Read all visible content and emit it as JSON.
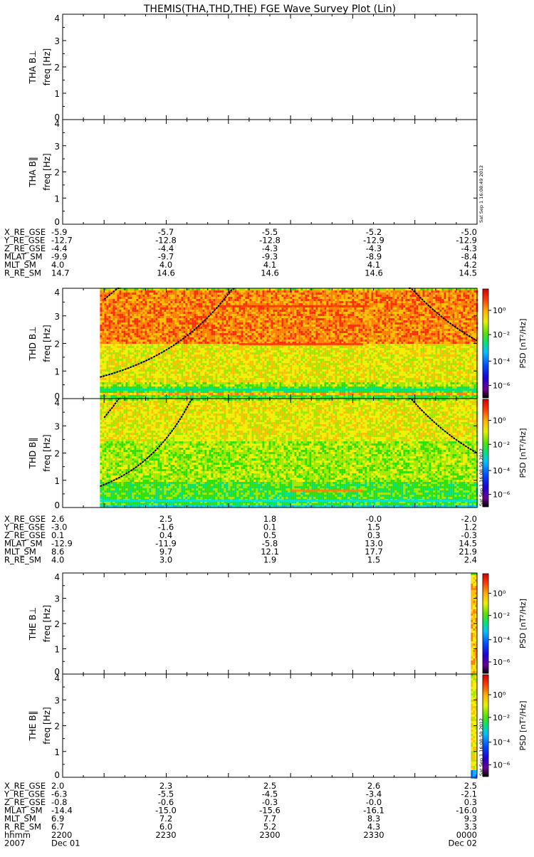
{
  "title": "THEMIS(THA,THD,THE) FGE Wave Survey Plot (Lin)",
  "stamps": {
    "tha": "Sat Sep  1 16:08:49 2012",
    "thd": "Sat Sep  1 16:08:50 2012",
    "the": "Sat Sep  1 16:08:50 2012"
  },
  "colorbar": {
    "label": "PSD [nT²/Hz]",
    "tick_labels": [
      "10⁰",
      "10⁻²",
      "10⁻⁴",
      "10⁻⁶"
    ],
    "colors": [
      "#000000",
      "#5a0070",
      "#7a00a0",
      "#3000d0",
      "#0000ff",
      "#0060ff",
      "#00b0ff",
      "#00e0e0",
      "#00e080",
      "#30e000",
      "#a0e800",
      "#f0f000",
      "#ffc000",
      "#ff8000",
      "#ff3000",
      "#e00000"
    ]
  },
  "chart_data": [
    {
      "type": "heatmap",
      "id": "tha-bperp",
      "ylabel": "THA B⊥",
      "ylabel2": "freq [Hz]",
      "ylim": [
        0,
        4
      ],
      "y_ticks": [
        "0",
        "1",
        "2",
        "3",
        "4"
      ],
      "has_data": false
    },
    {
      "type": "heatmap",
      "id": "tha-bpar",
      "ylabel": "THA B‖",
      "ylabel2": "freq [Hz]",
      "ylim": [
        0,
        4
      ],
      "y_ticks": [
        "0",
        "1",
        "2",
        "3",
        "4"
      ],
      "has_data": false
    },
    {
      "type": "heatmap",
      "id": "thd-bperp",
      "ylabel": "THD B⊥",
      "ylabel2": "freq [Hz]",
      "ylim": [
        0,
        4
      ],
      "y_ticks": [
        "0",
        "1",
        "2",
        "3",
        "4"
      ],
      "has_data": true,
      "data_start_min": 2218,
      "data_end_min": 2400,
      "bands": [
        {
          "f": [
            0.0,
            0.18
          ],
          "level": 9
        },
        {
          "f": [
            0.18,
            0.28
          ],
          "level": 12
        },
        {
          "f": [
            0.28,
            0.45
          ],
          "level": 9
        },
        {
          "f": [
            0.45,
            0.6
          ],
          "level": 10
        },
        {
          "f": [
            0.6,
            2.0
          ],
          "level": 11
        },
        {
          "f": [
            2.0,
            4.0
          ],
          "level": 13
        }
      ],
      "lines": [
        {
          "f": 1.97,
          "t_start": 2285,
          "t_end": 2345,
          "level": 14
        },
        {
          "f": 3.35,
          "t_start": 2275,
          "t_end": 2348,
          "level": 14
        },
        {
          "f": 0.32,
          "t_start": 2218,
          "t_end": 2400,
          "level": 8
        }
      ],
      "curves": [
        {
          "t_start": 2218,
          "t_end": 2283,
          "f_start": 0.78,
          "f_end": 4.1
        },
        {
          "t_start": 2220,
          "t_end": 2228,
          "f_start": 3.6,
          "f_end": 4.1
        },
        {
          "t_start": 2367,
          "t_end": 2400,
          "f_start": 4.1,
          "f_end": 2.1
        }
      ]
    },
    {
      "type": "heatmap",
      "id": "thd-bpar",
      "ylabel": "THD B‖",
      "ylabel2": "freq [Hz]",
      "ylim": [
        0,
        4
      ],
      "y_ticks": [
        "0",
        "1",
        "2",
        "3",
        "4"
      ],
      "has_data": true,
      "data_start_min": 2218,
      "data_end_min": 2400,
      "bands": [
        {
          "f": [
            0.0,
            0.15
          ],
          "level": 7
        },
        {
          "f": [
            0.15,
            0.3
          ],
          "level": 9
        },
        {
          "f": [
            0.3,
            1.0
          ],
          "level": 9
        },
        {
          "f": [
            1.0,
            2.5
          ],
          "level": 10
        },
        {
          "f": [
            2.5,
            4.0
          ],
          "level": 11
        }
      ],
      "lines": [
        {
          "f": 0.62,
          "t_start": 2310,
          "t_end": 2345,
          "level": 13
        },
        {
          "f": 0.25,
          "t_start": 2218,
          "t_end": 2400,
          "level": 7
        }
      ],
      "curves": [
        {
          "t_start": 2218,
          "t_end": 2263,
          "f_start": 0.78,
          "f_end": 4.1
        },
        {
          "t_start": 2220,
          "t_end": 2228,
          "f_start": 3.3,
          "f_end": 4.1
        },
        {
          "t_start": 2367,
          "t_end": 2400,
          "f_start": 4.1,
          "f_end": 2.0
        }
      ]
    },
    {
      "type": "heatmap",
      "id": "the-bperp",
      "ylabel": "THE B⊥",
      "ylabel2": "freq [Hz]",
      "ylim": [
        0,
        4
      ],
      "y_ticks": [
        "0",
        "1",
        "2",
        "3",
        "4"
      ],
      "has_data": true,
      "data_start_min": 2397,
      "data_end_min": 2400,
      "bands": [
        {
          "f": [
            0.0,
            4.0
          ],
          "level": 12
        }
      ],
      "lines": [],
      "curves": []
    },
    {
      "type": "heatmap",
      "id": "the-bpar",
      "ylabel": "THE B‖",
      "ylabel2": "freq [Hz]",
      "ylim": [
        0,
        4
      ],
      "y_ticks": [
        "0",
        "1",
        "2",
        "3",
        "4"
      ],
      "has_data": true,
      "data_start_min": 2397,
      "data_end_min": 2400,
      "bands": [
        {
          "f": [
            0.0,
            0.3
          ],
          "level": 6
        },
        {
          "f": [
            0.3,
            4.0
          ],
          "level": 11
        }
      ],
      "lines": [],
      "curves": []
    }
  ],
  "ephemeris": [
    {
      "probe": "THA",
      "rows": [
        {
          "label": "X_RE_GSE",
          "values": [
            "-5.9",
            "-5.7",
            "-5.5",
            "-5.2",
            "-5.0"
          ]
        },
        {
          "label": "Y_RE_GSE",
          "values": [
            "-12.7",
            "-12.8",
            "-12.8",
            "-12.9",
            "-12.9"
          ]
        },
        {
          "label": "Z_RE_GSE",
          "values": [
            "-4.4",
            "-4.4",
            "-4.3",
            "-4.3",
            "-4.3"
          ]
        },
        {
          "label": "MLAT_SM",
          "values": [
            "-9.9",
            "-9.7",
            "-9.3",
            "-8.9",
            "-8.4"
          ]
        },
        {
          "label": "MLT_SM",
          "values": [
            "4.0",
            "4.0",
            "4.1",
            "4.1",
            "4.2"
          ]
        },
        {
          "label": "R_RE_SM",
          "values": [
            "14.7",
            "14.6",
            "14.6",
            "14.6",
            "14.5"
          ]
        }
      ]
    },
    {
      "probe": "THD",
      "rows": [
        {
          "label": "X_RE_GSE",
          "values": [
            "2.6",
            "2.5",
            "1.8",
            "-0.0",
            "-2.0"
          ]
        },
        {
          "label": "Y_RE_GSE",
          "values": [
            "-3.0",
            "-1.6",
            "0.1",
            "1.5",
            "1.2"
          ]
        },
        {
          "label": "Z_RE_GSE",
          "values": [
            "0.1",
            "0.4",
            "0.5",
            "0.3",
            "-0.3"
          ]
        },
        {
          "label": "MLAT_SM",
          "values": [
            "-12.9",
            "-11.9",
            "-5.8",
            "13.0",
            "14.5"
          ]
        },
        {
          "label": "MLT_SM",
          "values": [
            "8.6",
            "9.7",
            "12.1",
            "17.7",
            "21.9"
          ]
        },
        {
          "label": "R_RE_SM",
          "values": [
            "4.0",
            "3.0",
            "1.9",
            "1.5",
            "2.4"
          ]
        }
      ]
    },
    {
      "probe": "THE",
      "rows": [
        {
          "label": "X_RE_GSE",
          "values": [
            "2.0",
            "2.3",
            "2.5",
            "2.6",
            "2.5"
          ]
        },
        {
          "label": "Y_RE_GSE",
          "values": [
            "-6.3",
            "-5.5",
            "-4.5",
            "-3.4",
            "-2.1"
          ]
        },
        {
          "label": "Z_RE_GSE",
          "values": [
            "-0.8",
            "-0.6",
            "-0.3",
            "-0.0",
            "0.3"
          ]
        },
        {
          "label": "MLAT_SM",
          "values": [
            "-14.4",
            "-15.0",
            "-15.6",
            "-16.1",
            "-16.0"
          ]
        },
        {
          "label": "MLT_SM",
          "values": [
            "6.9",
            "7.2",
            "7.7",
            "8.3",
            "9.3"
          ]
        },
        {
          "label": "R_RE_SM",
          "values": [
            "6.7",
            "6.0",
            "5.2",
            "4.3",
            "3.3"
          ]
        }
      ],
      "time_row": {
        "label": "hhmm",
        "values": [
          "2200",
          "2230",
          "2300",
          "2330",
          "0000"
        ]
      },
      "date_row": {
        "label": "2007",
        "start": "Dec 01",
        "end": "Dec 02"
      }
    }
  ]
}
